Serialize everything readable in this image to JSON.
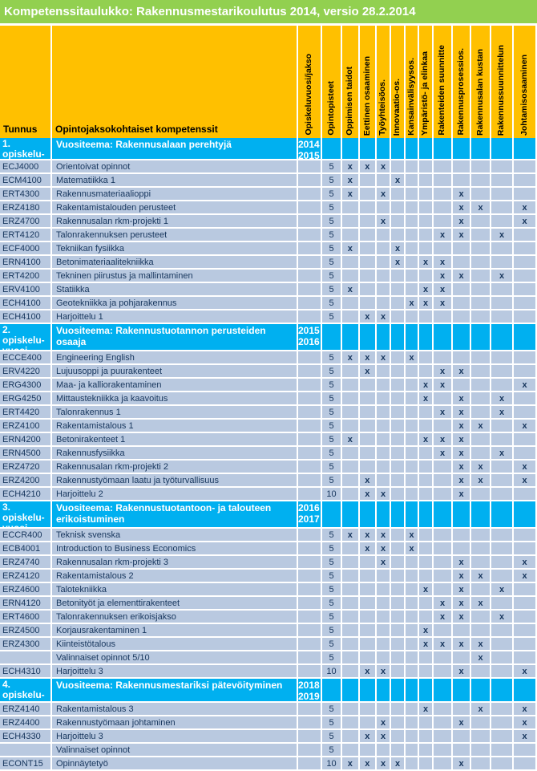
{
  "title": "Kompetenssitaulukko: Rakennusmestarikoulutus 2014, versio 28.2.2014",
  "colors": {
    "title_bg": "#92D050",
    "header_bg": "#FFC000",
    "section_bg": "#00B0F0",
    "cell_bg": "#B9C9E0",
    "grid_line": "#FFFFFF",
    "data_text": "#17365D",
    "header_text": "#000000",
    "title_text": "#FFFFFF"
  },
  "header": {
    "tunnus": "Tunnus",
    "kompetenssit": "Opintojaksokohtaiset kompetenssit",
    "rotated": [
      "Opiskeluvuosi/jakso",
      "Opintopisteet",
      "Oppimisen taidot",
      "Eettinen osaaminen",
      "Työyhteisöos.",
      "Innovaatio-os.",
      "Kansainvälisyysos.",
      "Ympäristö- ja elinkaa",
      "Rakenteiden suunnitte",
      "Rakennusprosessios.",
      "Rakennusalan kustan",
      "Rakennussuunnittelun",
      "Johtamisosaaminen"
    ]
  },
  "mark_symbol": "x",
  "sections": [
    {
      "label": "1. opiskelu-vuosi",
      "theme": "Vuositeema: Rakennusalaan perehtyjä",
      "years": [
        "2014",
        "2015"
      ],
      "rows": [
        {
          "code": "ECJ4000",
          "name": "Orientoivat opinnot",
          "op": "5",
          "marks": [
            1,
            2,
            3
          ]
        },
        {
          "code": "ECM4100",
          "name": "Matematiikka 1",
          "op": "5",
          "marks": [
            1,
            4
          ]
        },
        {
          "code": "ERT4300",
          "name": "Rakennusmateriaalioppi",
          "op": "5",
          "marks": [
            1,
            3,
            8
          ]
        },
        {
          "code": "ERZ4180",
          "name": "Rakentamistalouden perusteet",
          "op": "5",
          "marks": [
            8,
            9,
            11
          ]
        },
        {
          "code": "ERZ4700",
          "name": "Rakennusalan rkm-projekti 1",
          "op": "5",
          "marks": [
            3,
            8,
            11
          ]
        },
        {
          "code": "ERT4120",
          "name": "Talonrakennuksen perusteet",
          "op": "5",
          "marks": [
            7,
            8,
            10
          ]
        },
        {
          "code": "ECF4000",
          "name": "Tekniikan fysiikka",
          "op": "5",
          "marks": [
            1,
            4
          ]
        },
        {
          "code": "ERN4100",
          "name": "Betonimateriaalitekniikka",
          "op": "5",
          "marks": [
            4,
            6,
            7
          ]
        },
        {
          "code": "ERT4200",
          "name": "Tekninen piirustus ja mallintaminen",
          "op": "5",
          "marks": [
            7,
            8,
            10
          ]
        },
        {
          "code": "ERV4100",
          "name": "Statiikka",
          "op": "5",
          "marks": [
            1,
            6,
            7
          ]
        },
        {
          "code": "ECH4100",
          "name": "Geotekniikka ja pohjarakennus",
          "op": "5",
          "marks": [
            5,
            6,
            7
          ]
        },
        {
          "code": "ECH4100",
          "name": "Harjoittelu 1",
          "op": "5",
          "marks": [
            2,
            3
          ]
        }
      ]
    },
    {
      "label": "2. opiskelu-vuosi",
      "theme": "Vuositeema: Rakennustuotannon perusteiden osaaja",
      "years": [
        "2015",
        "2016"
      ],
      "rows": [
        {
          "code": "ECCE400",
          "name": "Engineering English",
          "op": "5",
          "marks": [
            1,
            2,
            3,
            5
          ]
        },
        {
          "code": "ERV4220",
          "name": "Lujuusoppi ja puurakenteet",
          "op": "5",
          "marks": [
            2,
            7,
            8
          ]
        },
        {
          "code": "ERG4300",
          "name": "Maa- ja kalliorakentaminen",
          "op": "5",
          "marks": [
            6,
            7,
            11
          ]
        },
        {
          "code": "ERG4250",
          "name": "Mittaustekniikka ja kaavoitus",
          "op": "5",
          "marks": [
            6,
            8,
            10
          ]
        },
        {
          "code": "ERT4420",
          "name": "Talonrakennus 1",
          "op": "5",
          "marks": [
            7,
            8,
            10
          ]
        },
        {
          "code": "ERZ4100",
          "name": "Rakentamistalous 1",
          "op": "5",
          "marks": [
            8,
            9,
            11
          ]
        },
        {
          "code": "ERN4200",
          "name": "Betonirakenteet 1",
          "op": "5",
          "marks": [
            1,
            6,
            7,
            8
          ]
        },
        {
          "code": "ERN4500",
          "name": "Rakennusfysiikka",
          "op": "5",
          "marks": [
            7,
            8,
            10
          ]
        },
        {
          "code": "ERZ4720",
          "name": "Rakennusalan rkm-projekti 2",
          "op": "5",
          "marks": [
            8,
            9,
            11
          ]
        },
        {
          "code": "ERZ4200",
          "name": "Rakennustyömaan laatu ja työturvallisuus",
          "op": "5",
          "marks": [
            2,
            8,
            9,
            11
          ]
        },
        {
          "code": "ECH4210",
          "name": "Harjoittelu 2",
          "op": "10",
          "marks": [
            2,
            3,
            8
          ]
        }
      ]
    },
    {
      "label": "3. opiskelu-vuosi",
      "theme": "Vuositeema: Rakennustuotantoon- ja talouteen erikoistuminen",
      "years": [
        "2016",
        "2017"
      ],
      "rows": [
        {
          "code": "ECCR400",
          "name": "Teknisk svenska",
          "op": "5",
          "marks": [
            1,
            2,
            3,
            5
          ]
        },
        {
          "code": "ECB4001",
          "name": "Introduction to Business Economics",
          "op": "5",
          "marks": [
            2,
            3,
            5
          ]
        },
        {
          "code": "ERZ4740",
          "name": "Rakennusalan rkm-projekti 3",
          "op": "5",
          "marks": [
            3,
            8,
            11
          ]
        },
        {
          "code": "ERZ4120",
          "name": "Rakentamistalous 2",
          "op": "5",
          "marks": [
            8,
            9,
            11
          ]
        },
        {
          "code": "ERZ4600",
          "name": "Talotekniikka",
          "op": "5",
          "marks": [
            6,
            8,
            10
          ]
        },
        {
          "code": "ERN4120",
          "name": "Betonityöt ja elementtirakenteet",
          "op": "5",
          "marks": [
            7,
            8,
            9
          ]
        },
        {
          "code": "ERT4600",
          "name": "Talonrakennuksen erikoisjakso",
          "op": "5",
          "marks": [
            7,
            8,
            10
          ]
        },
        {
          "code": "ERZ4500",
          "name": "Korjausrakentaminen 1",
          "op": "5",
          "marks": [
            6
          ]
        },
        {
          "code": "ERZ4300",
          "name": "Kiinteistötalous",
          "op": "5",
          "marks": [
            6,
            7,
            8,
            9
          ]
        },
        {
          "code": "",
          "name": "Valinnaiset opinnot 5/10",
          "op": "5",
          "marks": [
            9
          ]
        },
        {
          "code": "ECH4310",
          "name": "Harjoittelu 3",
          "op": "10",
          "marks": [
            2,
            3,
            8,
            11
          ]
        }
      ]
    },
    {
      "label": "4. opiskelu-vuosi",
      "theme": "Vuositeema: Rakennusmestariksi pätevöityminen",
      "years": [
        "2018",
        "2019"
      ],
      "rows": [
        {
          "code": "ERZ4140",
          "name": "Rakentamistalous 3",
          "op": "5",
          "marks": [
            6,
            9,
            11
          ]
        },
        {
          "code": "ERZ4400",
          "name": "Rakennustyömaan johtaminen",
          "op": "5",
          "marks": [
            3,
            8,
            11
          ]
        },
        {
          "code": "ECH4330",
          "name": "Harjoittelu 3",
          "op": "5",
          "marks": [
            2,
            3,
            11
          ]
        },
        {
          "code": "",
          "name": "Valinnaiset opinnot",
          "op": "5",
          "marks": []
        },
        {
          "code": "ECONT15",
          "name": "Opinnäytetyö",
          "op": "10",
          "marks": [
            1,
            2,
            3,
            4,
            8
          ]
        }
      ]
    }
  ]
}
